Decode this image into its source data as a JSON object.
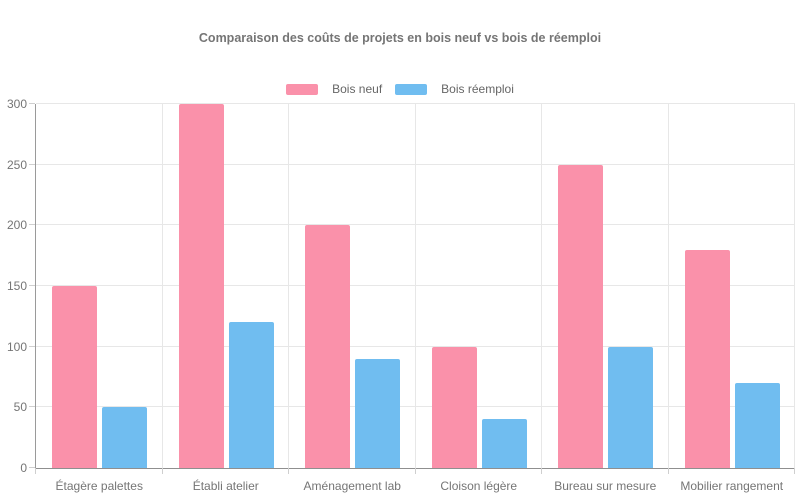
{
  "chart_data": {
    "type": "bar",
    "title": "Comparaison des coûts de projets en bois neuf vs bois de réemploi",
    "categories": [
      "Étagère palettes",
      "Établi atelier",
      "Aménagement lab",
      "Cloison légère",
      "Bureau sur mesure",
      "Mobilier rangement"
    ],
    "series": [
      {
        "name": "Bois neuf",
        "color": "#fa91aa",
        "values": [
          150,
          300,
          200,
          100,
          250,
          180
        ]
      },
      {
        "name": "Bois réemploi",
        "color": "#70bdf0",
        "values": [
          50,
          120,
          90,
          40,
          100,
          70
        ]
      }
    ],
    "xlabel": "",
    "ylabel": "",
    "ylim": [
      0,
      300
    ],
    "yticks": [
      0,
      50,
      100,
      150,
      200,
      250,
      300
    ],
    "grid": true,
    "legend_position": "top",
    "colors": {
      "grid": "#e7e7e7",
      "tick": "#cfcfcf",
      "axis": "#9a9a9a",
      "title_text": "#757575",
      "axis_text": "#757575",
      "legend_text": "#666666",
      "background": "#ffffff"
    }
  }
}
